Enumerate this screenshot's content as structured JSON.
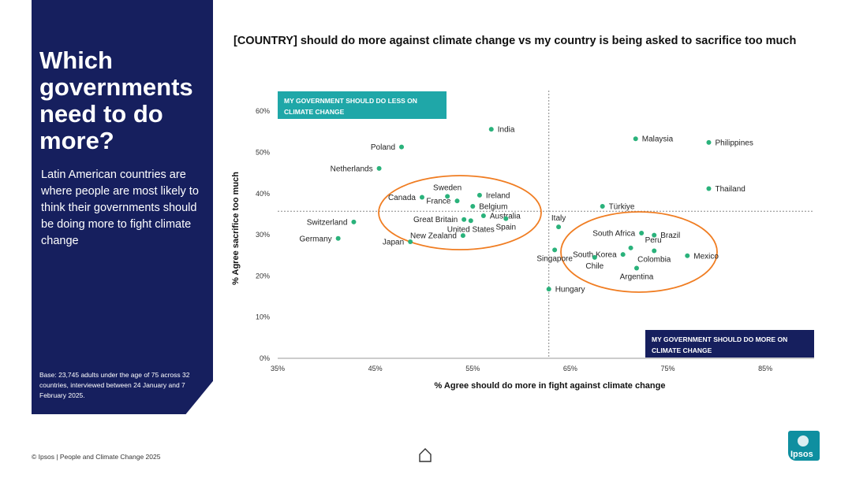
{
  "sidebar": {
    "heading": "Which governments need to do more?",
    "subtext": "Latin American countries are where people are most likely to think their governments should be doing more to fight climate change",
    "base_note": "Base: 23,745 adults under the age of 75 across 32 countries, interviewed between 24 January and 7 February 2025."
  },
  "footer": {
    "credit": "© Ipsos | People and Climate Change 2025",
    "logo_text": "Ipsos"
  },
  "colors": {
    "sidebar_bg": "#161f5e",
    "point": "#2ab27b",
    "teal_box": "#1fa7a8",
    "navy_box": "#161f5e",
    "ellipse": "#f07d22"
  },
  "chart_data": {
    "type": "scatter",
    "title": "[COUNTRY] should do more against climate change vs my country is being asked to sacrifice too much",
    "xlabel": "% Agree should do more in fight against climate change",
    "ylabel": "% Agree sacrifice too much",
    "xlim": [
      35,
      90
    ],
    "ylim": [
      0,
      65
    ],
    "xticks": [
      "35%",
      "45%",
      "55%",
      "65%",
      "75%",
      "85%"
    ],
    "xtick_values": [
      35,
      45,
      55,
      65,
      75,
      85
    ],
    "yticks": [
      "0%",
      "10%",
      "20%",
      "30%",
      "40%",
      "50%",
      "60%"
    ],
    "ytick_values": [
      0,
      10,
      20,
      30,
      40,
      50,
      60
    ],
    "reference_lines": {
      "x": 62.8,
      "y": 35.7
    },
    "quadrant_labels": {
      "top_left": "MY GOVERNMENT SHOULD DO LESS ON CLIMATE CHANGE",
      "bottom_right": "MY GOVERNMENT SHOULD DO MORE ON CLIMATE CHANGE"
    },
    "points": [
      {
        "name": "India",
        "x": 56.9,
        "y": 55.6,
        "label_pos": "right"
      },
      {
        "name": "Poland",
        "x": 47.7,
        "y": 51.3,
        "label_pos": "left"
      },
      {
        "name": "Netherlands",
        "x": 45.4,
        "y": 46.1,
        "label_pos": "left"
      },
      {
        "name": "Sweden",
        "x": 52.4,
        "y": 39.3,
        "label_pos": "above"
      },
      {
        "name": "Ireland",
        "x": 55.7,
        "y": 39.6,
        "label_pos": "right"
      },
      {
        "name": "Canada",
        "x": 49.8,
        "y": 39.1,
        "label_pos": "left"
      },
      {
        "name": "France",
        "x": 53.4,
        "y": 38.2,
        "label_pos": "left"
      },
      {
        "name": "Belgium",
        "x": 55.0,
        "y": 36.9,
        "label_pos": "right"
      },
      {
        "name": "Australia",
        "x": 56.1,
        "y": 34.6,
        "label_pos": "right"
      },
      {
        "name": "Great Britain",
        "x": 54.1,
        "y": 33.7,
        "label_pos": "left"
      },
      {
        "name": "United States",
        "x": 54.8,
        "y": 33.4,
        "label_pos": "below"
      },
      {
        "name": "Spain",
        "x": 58.4,
        "y": 33.9,
        "label_pos": "below"
      },
      {
        "name": "New Zealand",
        "x": 54.0,
        "y": 29.8,
        "label_pos": "left"
      },
      {
        "name": "Switzerland",
        "x": 42.8,
        "y": 33.1,
        "label_pos": "left"
      },
      {
        "name": "Germany",
        "x": 41.2,
        "y": 29.1,
        "label_pos": "left"
      },
      {
        "name": "Japan",
        "x": 48.6,
        "y": 28.3,
        "label_pos": "left"
      },
      {
        "name": "Italy",
        "x": 63.8,
        "y": 31.9,
        "label_pos": "above"
      },
      {
        "name": "Türkiye",
        "x": 68.3,
        "y": 36.9,
        "label_pos": "right"
      },
      {
        "name": "Malaysia",
        "x": 71.7,
        "y": 53.3,
        "label_pos": "right"
      },
      {
        "name": "Philippines",
        "x": 79.2,
        "y": 52.4,
        "label_pos": "right"
      },
      {
        "name": "Thailand",
        "x": 79.2,
        "y": 41.2,
        "label_pos": "right"
      },
      {
        "name": "South Africa",
        "x": 72.3,
        "y": 30.4,
        "label_pos": "left"
      },
      {
        "name": "Brazil",
        "x": 73.6,
        "y": 29.9,
        "label_pos": "right"
      },
      {
        "name": "Peru",
        "x": 71.2,
        "y": 26.8,
        "label_pos": "aboveright"
      },
      {
        "name": "South Korea",
        "x": 70.4,
        "y": 25.2,
        "label_pos": "left"
      },
      {
        "name": "Colombia",
        "x": 73.6,
        "y": 26.1,
        "label_pos": "below"
      },
      {
        "name": "Mexico",
        "x": 77.0,
        "y": 24.9,
        "label_pos": "right"
      },
      {
        "name": "Singapore",
        "x": 63.4,
        "y": 26.3,
        "label_pos": "below"
      },
      {
        "name": "Chile",
        "x": 67.5,
        "y": 24.5,
        "label_pos": "below"
      },
      {
        "name": "Argentina",
        "x": 71.8,
        "y": 21.9,
        "label_pos": "below"
      },
      {
        "name": "Hungary",
        "x": 62.8,
        "y": 16.8,
        "label_pos": "right"
      }
    ]
  }
}
